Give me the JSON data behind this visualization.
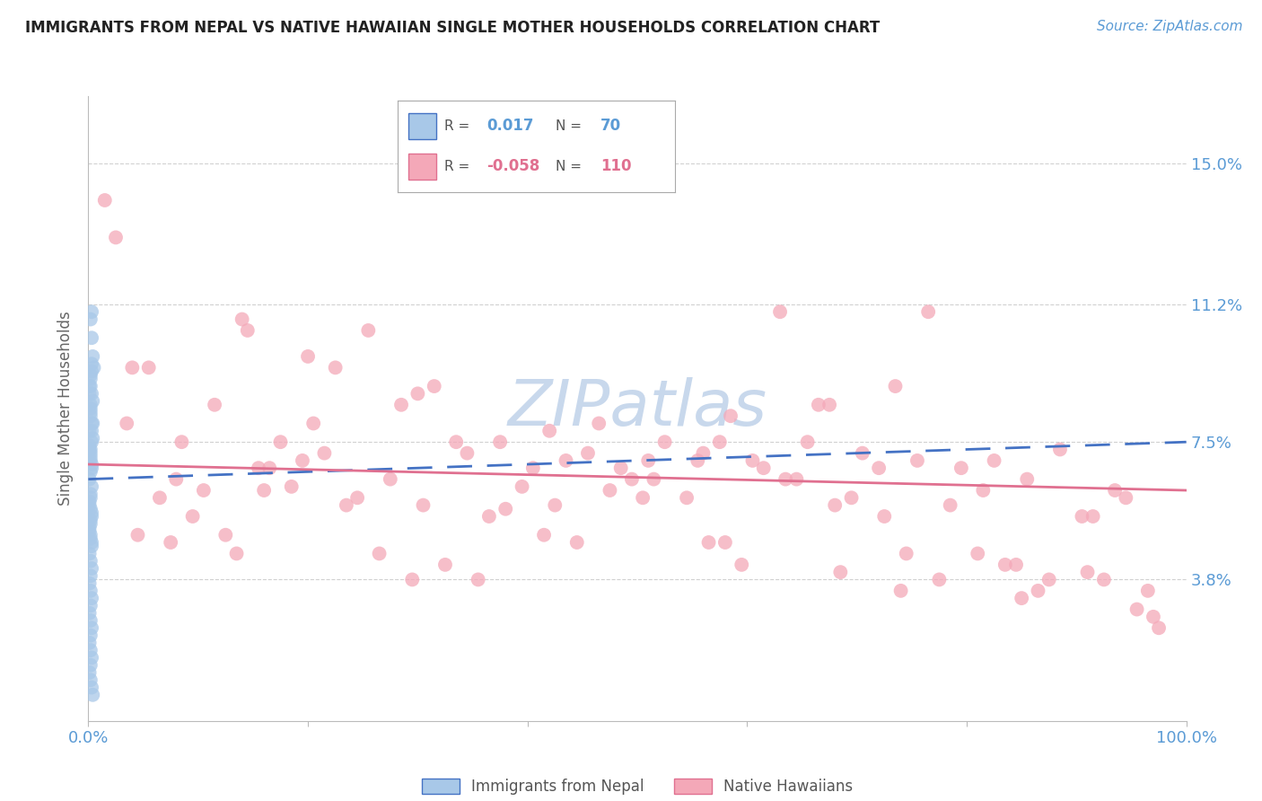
{
  "title": "IMMIGRANTS FROM NEPAL VS NATIVE HAWAIIAN SINGLE MOTHER HOUSEHOLDS CORRELATION CHART",
  "source": "Source: ZipAtlas.com",
  "ylabel": "Single Mother Households",
  "yticks": [
    0.038,
    0.075,
    0.112,
    0.15
  ],
  "ytick_labels": [
    "3.8%",
    "7.5%",
    "11.2%",
    "15.0%"
  ],
  "xlim": [
    0.0,
    1.0
  ],
  "ylim": [
    0.0,
    0.168
  ],
  "blue_color": "#a8c8e8",
  "pink_color": "#f4a8b8",
  "trend_blue_color": "#4472c4",
  "trend_pink_color": "#e07090",
  "axis_color": "#5b9bd5",
  "grid_color": "#cccccc",
  "watermark_color": "#c8d8ec",
  "nepal_x": [
    0.002,
    0.003,
    0.004,
    0.002,
    0.003,
    0.005,
    0.003,
    0.002,
    0.001,
    0.002,
    0.003,
    0.004,
    0.002,
    0.001,
    0.003,
    0.002,
    0.004,
    0.003,
    0.002,
    0.001,
    0.002,
    0.003,
    0.002,
    0.001,
    0.003,
    0.002,
    0.004,
    0.002,
    0.003,
    0.001,
    0.002,
    0.003,
    0.002,
    0.001,
    0.003,
    0.002,
    0.001,
    0.002,
    0.003,
    0.002,
    0.001,
    0.002,
    0.003,
    0.001,
    0.002,
    0.003,
    0.002,
    0.001,
    0.002,
    0.003,
    0.002,
    0.001,
    0.002,
    0.003,
    0.002,
    0.001,
    0.002,
    0.003,
    0.002,
    0.001,
    0.002,
    0.003,
    0.004,
    0.002,
    0.001,
    0.003,
    0.002,
    0.001,
    0.002,
    0.003
  ],
  "nepal_y": [
    0.108,
    0.103,
    0.098,
    0.093,
    0.11,
    0.095,
    0.088,
    0.083,
    0.078,
    0.073,
    0.075,
    0.08,
    0.085,
    0.09,
    0.068,
    0.072,
    0.076,
    0.08,
    0.084,
    0.088,
    0.092,
    0.096,
    0.07,
    0.074,
    0.078,
    0.082,
    0.086,
    0.09,
    0.094,
    0.065,
    0.067,
    0.069,
    0.071,
    0.073,
    0.063,
    0.061,
    0.059,
    0.057,
    0.055,
    0.053,
    0.051,
    0.049,
    0.047,
    0.045,
    0.043,
    0.041,
    0.039,
    0.037,
    0.035,
    0.033,
    0.031,
    0.029,
    0.027,
    0.025,
    0.023,
    0.021,
    0.019,
    0.017,
    0.015,
    0.013,
    0.011,
    0.009,
    0.007,
    0.06,
    0.058,
    0.056,
    0.054,
    0.052,
    0.05,
    0.048
  ],
  "hawaii_x": [
    0.025,
    0.055,
    0.085,
    0.115,
    0.145,
    0.175,
    0.205,
    0.225,
    0.255,
    0.285,
    0.315,
    0.345,
    0.375,
    0.405,
    0.435,
    0.465,
    0.495,
    0.525,
    0.555,
    0.585,
    0.615,
    0.645,
    0.675,
    0.705,
    0.735,
    0.765,
    0.795,
    0.825,
    0.855,
    0.885,
    0.915,
    0.945,
    0.975,
    0.035,
    0.065,
    0.095,
    0.125,
    0.155,
    0.185,
    0.215,
    0.245,
    0.275,
    0.305,
    0.335,
    0.365,
    0.395,
    0.425,
    0.455,
    0.485,
    0.515,
    0.545,
    0.575,
    0.605,
    0.635,
    0.665,
    0.695,
    0.725,
    0.755,
    0.785,
    0.815,
    0.845,
    0.875,
    0.905,
    0.935,
    0.965,
    0.045,
    0.075,
    0.105,
    0.135,
    0.165,
    0.195,
    0.235,
    0.265,
    0.295,
    0.325,
    0.355,
    0.415,
    0.445,
    0.475,
    0.505,
    0.565,
    0.595,
    0.655,
    0.685,
    0.745,
    0.775,
    0.835,
    0.865,
    0.925,
    0.955,
    0.015,
    0.04,
    0.08,
    0.14,
    0.2,
    0.3,
    0.42,
    0.51,
    0.63,
    0.72,
    0.81,
    0.91,
    0.16,
    0.38,
    0.56,
    0.74,
    0.85,
    0.97,
    0.58,
    0.68
  ],
  "hawaii_y": [
    0.13,
    0.095,
    0.075,
    0.085,
    0.105,
    0.075,
    0.08,
    0.095,
    0.105,
    0.085,
    0.09,
    0.072,
    0.075,
    0.068,
    0.07,
    0.08,
    0.065,
    0.075,
    0.07,
    0.082,
    0.068,
    0.065,
    0.085,
    0.072,
    0.09,
    0.11,
    0.068,
    0.07,
    0.065,
    0.073,
    0.055,
    0.06,
    0.025,
    0.08,
    0.06,
    0.055,
    0.05,
    0.068,
    0.063,
    0.072,
    0.06,
    0.065,
    0.058,
    0.075,
    0.055,
    0.063,
    0.058,
    0.072,
    0.068,
    0.065,
    0.06,
    0.075,
    0.07,
    0.065,
    0.085,
    0.06,
    0.055,
    0.07,
    0.058,
    0.062,
    0.042,
    0.038,
    0.055,
    0.062,
    0.035,
    0.05,
    0.048,
    0.062,
    0.045,
    0.068,
    0.07,
    0.058,
    0.045,
    0.038,
    0.042,
    0.038,
    0.05,
    0.048,
    0.062,
    0.06,
    0.048,
    0.042,
    0.075,
    0.04,
    0.045,
    0.038,
    0.042,
    0.035,
    0.038,
    0.03,
    0.14,
    0.095,
    0.065,
    0.108,
    0.098,
    0.088,
    0.078,
    0.07,
    0.11,
    0.068,
    0.045,
    0.04,
    0.062,
    0.057,
    0.072,
    0.035,
    0.033,
    0.028,
    0.048,
    0.058
  ],
  "blue_trend_x0": 0.0,
  "blue_trend_y0": 0.065,
  "blue_trend_x1": 1.0,
  "blue_trend_y1": 0.075,
  "pink_trend_x0": 0.0,
  "pink_trend_y0": 0.069,
  "pink_trend_x1": 1.0,
  "pink_trend_y1": 0.062
}
